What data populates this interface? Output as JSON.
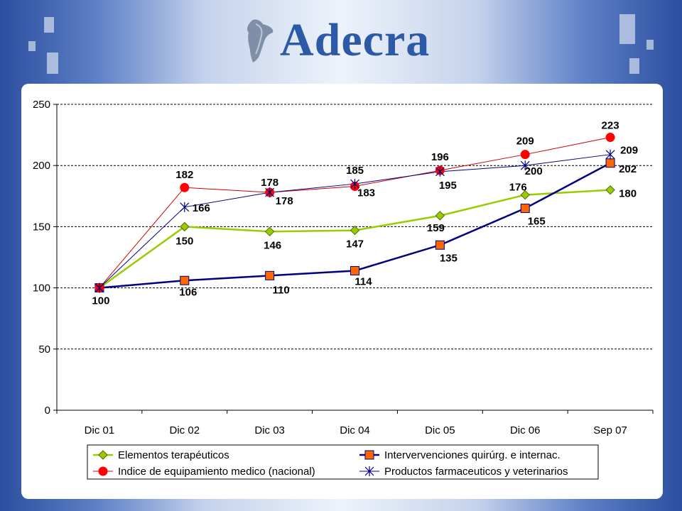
{
  "header": {
    "logo_text": "Adecra"
  },
  "colors": {
    "green": "#99cc00",
    "green_marker_fill": "#99cc00",
    "green_marker_stroke": "#4f6a00",
    "navy": "#000080",
    "orange": "#ff6600",
    "red": "#ff0000",
    "red_line": "#cc0000",
    "star": "#000080"
  },
  "chart_data": {
    "type": "line",
    "categories": [
      "Dic 01",
      "Dic 02",
      "Dic 03",
      "Dic 04",
      "Dic 05",
      "Dic 06",
      "Sep 07"
    ],
    "ylim": [
      0,
      250
    ],
    "yticks": [
      "0",
      "50",
      "100",
      "150",
      "200",
      "250"
    ],
    "grid": "horizontal dashed",
    "legend_position": "bottom",
    "series": [
      {
        "name": "Elementos terapéuticos",
        "marker": "diamond",
        "values": [
          100,
          150,
          146,
          147,
          159,
          176,
          180
        ],
        "labels": [
          "",
          "150",
          "146",
          "147",
          "159",
          "176",
          "180"
        ]
      },
      {
        "name": "Intervervenciones quirúrg. e internac.",
        "marker": "square",
        "values": [
          100,
          106,
          110,
          114,
          135,
          165,
          202
        ],
        "labels": [
          "100",
          "106",
          "110",
          "114",
          "135",
          "165",
          "202"
        ]
      },
      {
        "name": "Indice de equipamiento medico (nacional)",
        "marker": "circle",
        "values": [
          100,
          182,
          178,
          183,
          196,
          209,
          223
        ],
        "labels": [
          "",
          "182",
          "178",
          "183",
          "196",
          "209",
          "223"
        ]
      },
      {
        "name": "Productos farmaceuticos y veterinarios",
        "marker": "star",
        "values": [
          100,
          166,
          178,
          185,
          195,
          200,
          209
        ],
        "labels": [
          "",
          "166",
          "178",
          "185",
          "195",
          "200",
          "209"
        ]
      }
    ]
  }
}
